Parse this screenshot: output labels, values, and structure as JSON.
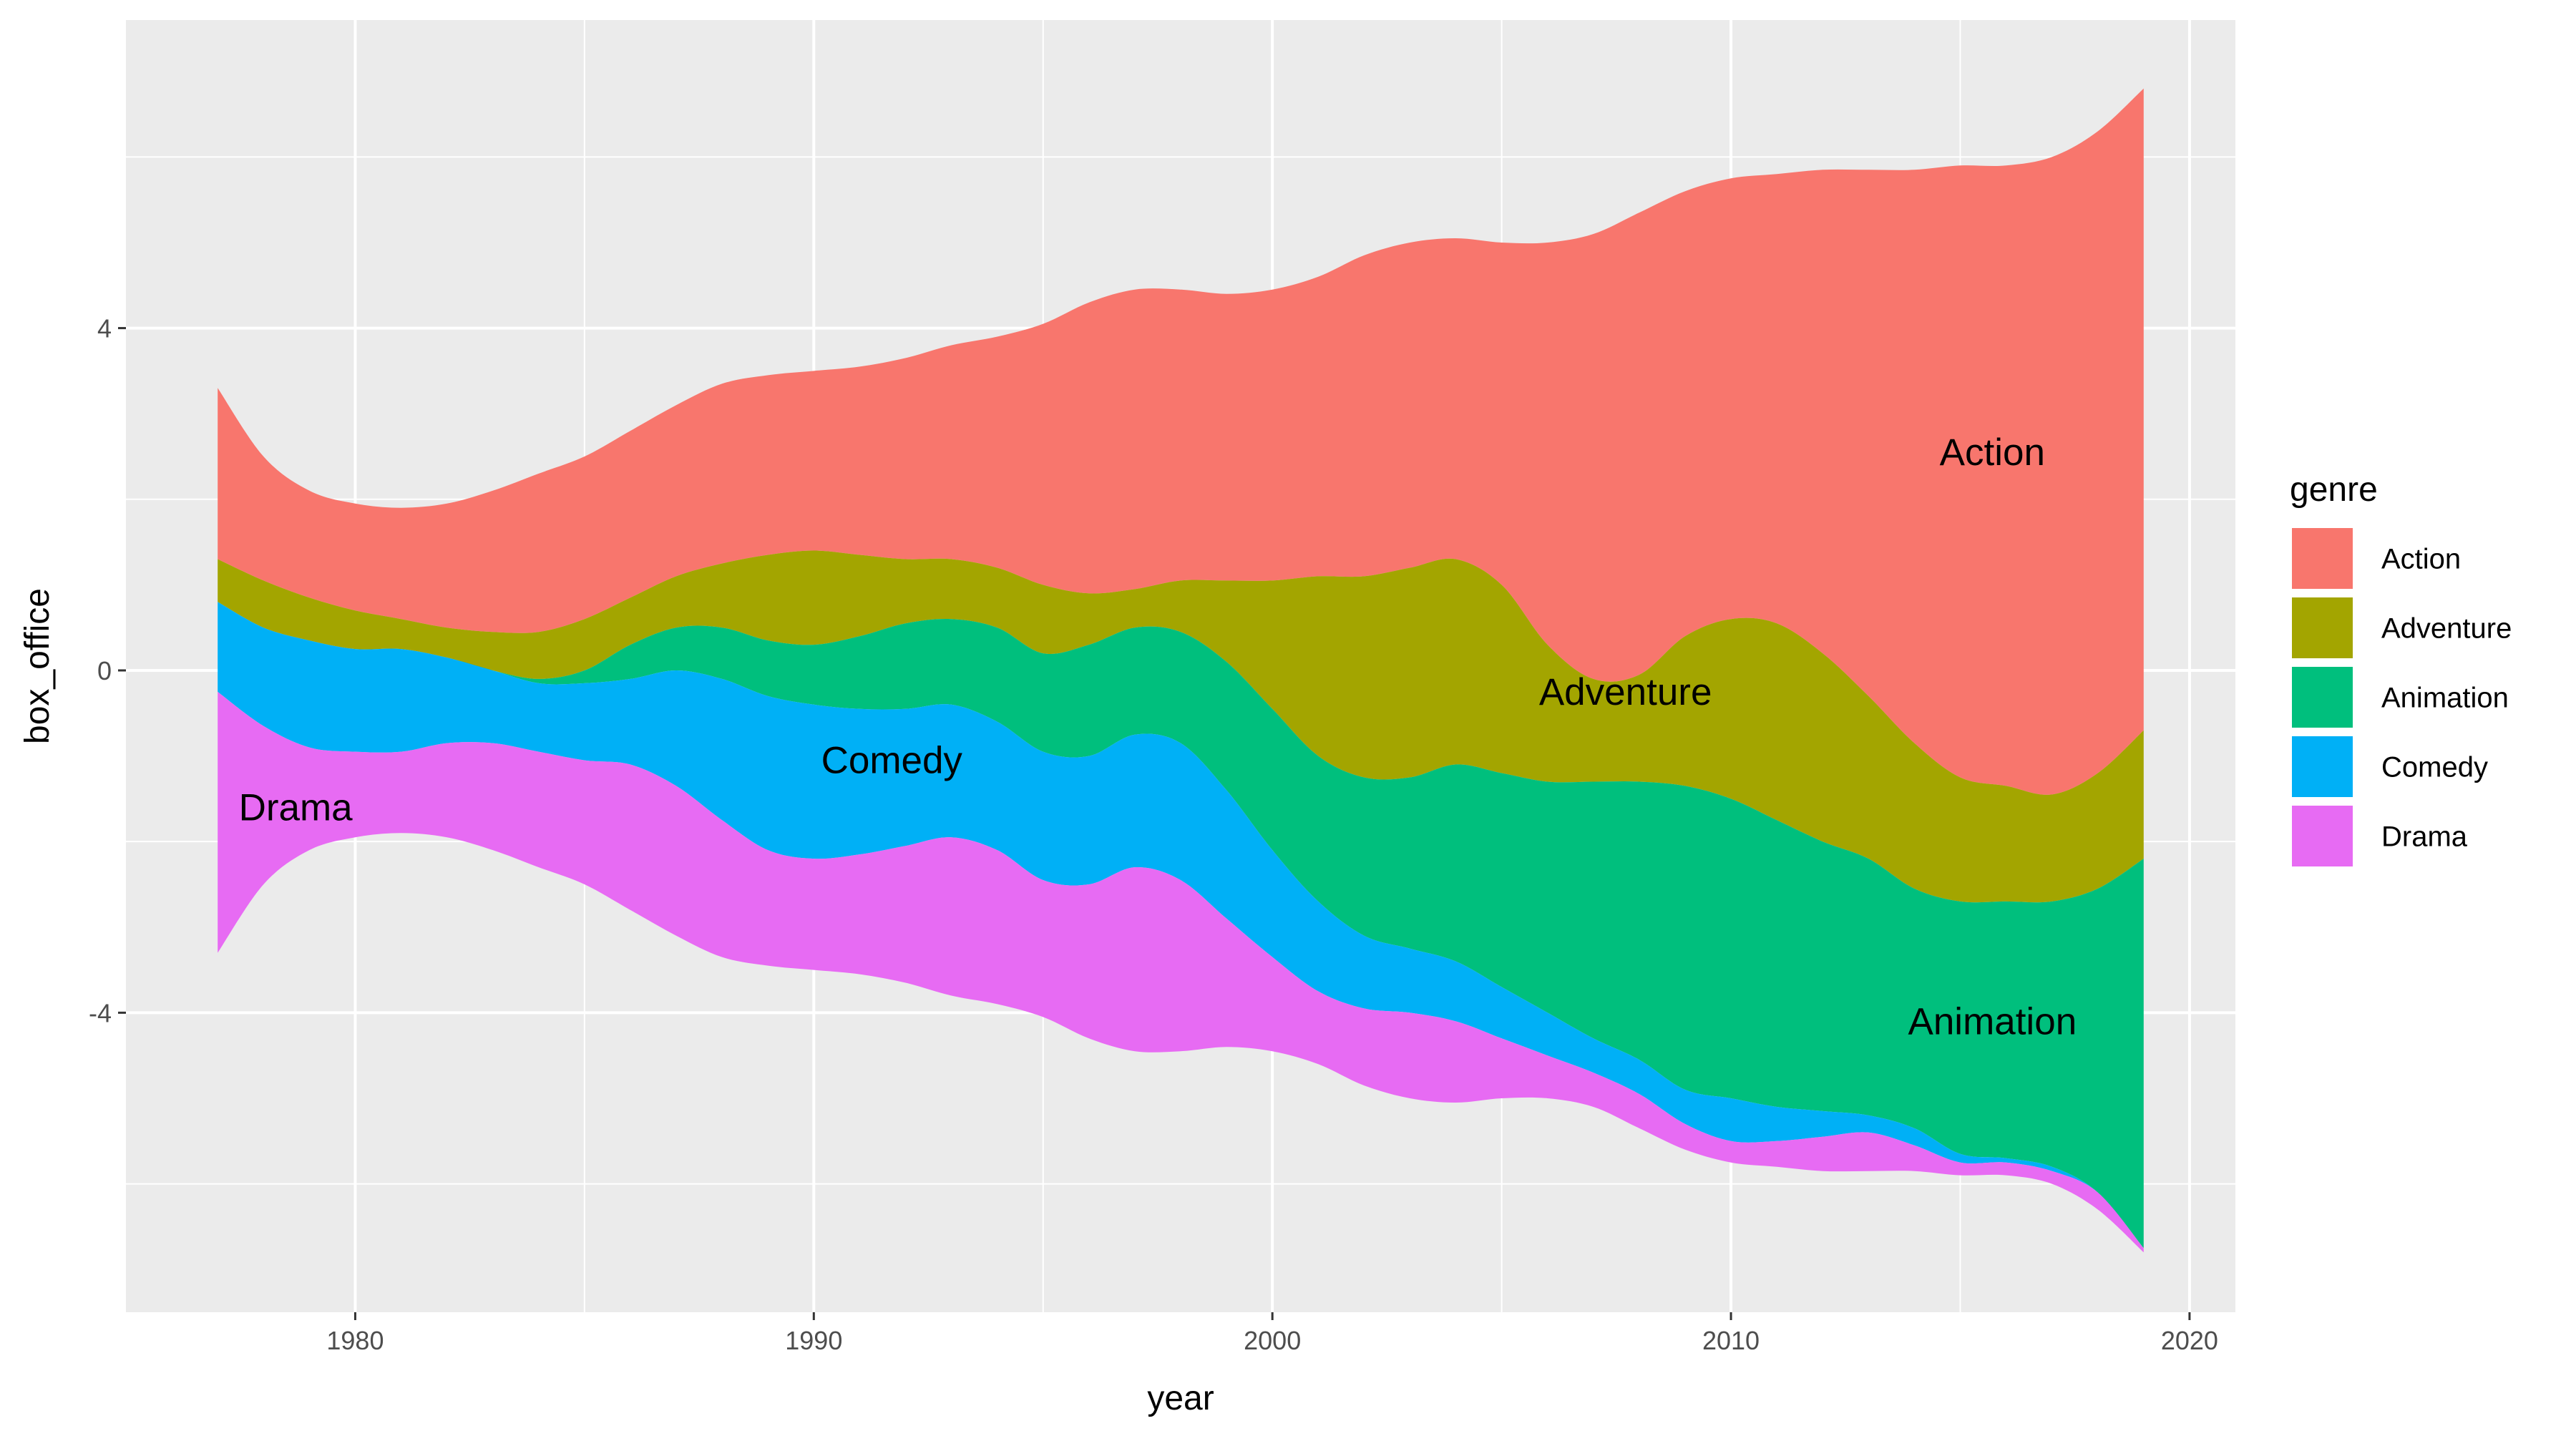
{
  "chart_data": {
    "type": "area",
    "subtype": "streamgraph",
    "title": "",
    "xlabel": "year",
    "ylabel": "box_office",
    "xlim": [
      1975,
      2021
    ],
    "ylim": [
      -7.5,
      7.6
    ],
    "x_ticks": [
      1980,
      1990,
      2000,
      2010,
      2020
    ],
    "y_ticks": [
      -4,
      0,
      4
    ],
    "grid": true,
    "legend": {
      "title": "genre",
      "position": "right"
    },
    "x": [
      1977,
      1978,
      1979,
      1980,
      1981,
      1982,
      1983,
      1984,
      1985,
      1986,
      1987,
      1988,
      1989,
      1990,
      1991,
      1992,
      1993,
      1994,
      1995,
      1996,
      1997,
      1998,
      1999,
      2000,
      2001,
      2002,
      2003,
      2004,
      2005,
      2006,
      2007,
      2008,
      2009,
      2010,
      2011,
      2012,
      2013,
      2014,
      2015,
      2016,
      2017,
      2018,
      2019
    ],
    "series": [
      {
        "name": "Action",
        "color": "#F8766D",
        "label": "Action",
        "label_x": 2015.7,
        "label_y": 2.55,
        "upper": [
          3.3,
          2.5,
          2.1,
          1.95,
          1.9,
          1.95,
          2.1,
          2.3,
          2.5,
          2.8,
          3.1,
          3.35,
          3.45,
          3.5,
          3.55,
          3.65,
          3.8,
          3.9,
          4.05,
          4.3,
          4.45,
          4.45,
          4.4,
          4.45,
          4.6,
          4.85,
          5.0,
          5.05,
          5.0,
          5.0,
          5.1,
          5.35,
          5.6,
          5.75,
          5.8,
          5.85,
          5.85,
          5.85,
          5.9,
          5.9,
          6.0,
          6.3,
          6.8
        ],
        "lower": [
          1.3,
          1.05,
          0.85,
          0.7,
          0.6,
          0.5,
          0.45,
          0.45,
          0.6,
          0.85,
          1.1,
          1.25,
          1.35,
          1.4,
          1.35,
          1.3,
          1.3,
          1.2,
          1.0,
          0.9,
          0.95,
          1.05,
          1.05,
          1.05,
          1.1,
          1.1,
          1.2,
          1.3,
          1.0,
          0.3,
          -0.1,
          -0.05,
          0.4,
          0.6,
          0.55,
          0.2,
          -0.3,
          -0.85,
          -1.25,
          -1.35,
          -1.45,
          -1.2,
          -0.7
        ]
      },
      {
        "name": "Adventure",
        "color": "#A3A500",
        "label": "Adventure",
        "label_x": 2007.7,
        "label_y": -0.25,
        "upper": [
          1.3,
          1.05,
          0.85,
          0.7,
          0.6,
          0.5,
          0.45,
          0.45,
          0.6,
          0.85,
          1.1,
          1.25,
          1.35,
          1.4,
          1.35,
          1.3,
          1.3,
          1.2,
          1.0,
          0.9,
          0.95,
          1.05,
          1.05,
          1.05,
          1.1,
          1.1,
          1.2,
          1.3,
          1.0,
          0.3,
          -0.1,
          -0.05,
          0.4,
          0.6,
          0.55,
          0.2,
          -0.3,
          -0.85,
          -1.25,
          -1.35,
          -1.45,
          -1.2,
          -0.7
        ],
        "lower": [
          0.8,
          0.5,
          0.35,
          0.25,
          0.25,
          0.15,
          0.0,
          -0.1,
          0.0,
          0.3,
          0.5,
          0.5,
          0.35,
          0.3,
          0.4,
          0.55,
          0.6,
          0.5,
          0.2,
          0.3,
          0.5,
          0.45,
          0.1,
          -0.45,
          -1.0,
          -1.25,
          -1.25,
          -1.1,
          -1.2,
          -1.3,
          -1.3,
          -1.3,
          -1.35,
          -1.5,
          -1.75,
          -2.0,
          -2.2,
          -2.55,
          -2.7,
          -2.7,
          -2.7,
          -2.55,
          -2.2
        ]
      },
      {
        "name": "Animation",
        "color": "#00BF7D",
        "label": "Animation",
        "label_x": 2015.7,
        "label_y": -4.1,
        "upper": [
          0.8,
          0.5,
          0.35,
          0.25,
          0.25,
          0.15,
          0.0,
          -0.1,
          0.0,
          0.3,
          0.5,
          0.5,
          0.35,
          0.3,
          0.4,
          0.55,
          0.6,
          0.5,
          0.2,
          0.3,
          0.5,
          0.45,
          0.1,
          -0.45,
          -1.0,
          -1.25,
          -1.25,
          -1.1,
          -1.2,
          -1.3,
          -1.3,
          -1.3,
          -1.35,
          -1.5,
          -1.75,
          -2.0,
          -2.2,
          -2.55,
          -2.7,
          -2.7,
          -2.7,
          -2.55,
          -2.2
        ],
        "lower": [
          0.8,
          0.5,
          0.35,
          0.25,
          0.25,
          0.15,
          0.0,
          -0.15,
          -0.15,
          -0.1,
          0.0,
          -0.1,
          -0.3,
          -0.4,
          -0.45,
          -0.45,
          -0.4,
          -0.6,
          -0.95,
          -1.0,
          -0.75,
          -0.85,
          -1.4,
          -2.1,
          -2.7,
          -3.1,
          -3.25,
          -3.4,
          -3.7,
          -4.0,
          -4.3,
          -4.55,
          -4.9,
          -5.0,
          -5.1,
          -5.15,
          -5.2,
          -5.35,
          -5.65,
          -5.7,
          -5.8,
          -6.1,
          -6.75
        ]
      },
      {
        "name": "Comedy",
        "color": "#00B0F6",
        "label": "Comedy",
        "label_x": 1991.7,
        "label_y": -1.05,
        "upper": [
          0.8,
          0.5,
          0.35,
          0.25,
          0.25,
          0.15,
          0.0,
          -0.15,
          -0.15,
          -0.1,
          0.0,
          -0.1,
          -0.3,
          -0.4,
          -0.45,
          -0.45,
          -0.4,
          -0.6,
          -0.95,
          -1.0,
          -0.75,
          -0.85,
          -1.4,
          -2.1,
          -2.7,
          -3.1,
          -3.25,
          -3.4,
          -3.7,
          -4.0,
          -4.3,
          -4.55,
          -4.9,
          -5.0,
          -5.1,
          -5.15,
          -5.2,
          -5.35,
          -5.65,
          -5.7,
          -5.8,
          -6.1,
          -6.75
        ],
        "lower": [
          -0.25,
          -0.65,
          -0.9,
          -0.95,
          -0.95,
          -0.85,
          -0.85,
          -0.95,
          -1.05,
          -1.1,
          -1.35,
          -1.75,
          -2.1,
          -2.2,
          -2.15,
          -2.05,
          -1.95,
          -2.1,
          -2.45,
          -2.5,
          -2.3,
          -2.45,
          -2.9,
          -3.35,
          -3.75,
          -3.95,
          -4.0,
          -4.1,
          -4.3,
          -4.5,
          -4.7,
          -4.95,
          -5.3,
          -5.5,
          -5.5,
          -5.45,
          -5.4,
          -5.55,
          -5.75,
          -5.75,
          -5.85,
          -6.1,
          -6.75
        ]
      },
      {
        "name": "Drama",
        "color": "#E76BF3",
        "label": "Drama",
        "label_x": 1978.7,
        "label_y": -1.6,
        "upper": [
          -0.25,
          -0.65,
          -0.9,
          -0.95,
          -0.95,
          -0.85,
          -0.85,
          -0.95,
          -1.05,
          -1.1,
          -1.35,
          -1.75,
          -2.1,
          -2.2,
          -2.15,
          -2.05,
          -1.95,
          -2.1,
          -2.45,
          -2.5,
          -2.3,
          -2.45,
          -2.9,
          -3.35,
          -3.75,
          -3.95,
          -4.0,
          -4.1,
          -4.3,
          -4.5,
          -4.7,
          -4.95,
          -5.3,
          -5.5,
          -5.5,
          -5.45,
          -5.4,
          -5.55,
          -5.75,
          -5.75,
          -5.85,
          -6.1,
          -6.75
        ],
        "lower": [
          -3.3,
          -2.5,
          -2.1,
          -1.95,
          -1.9,
          -1.95,
          -2.1,
          -2.3,
          -2.5,
          -2.8,
          -3.1,
          -3.35,
          -3.45,
          -3.5,
          -3.55,
          -3.65,
          -3.8,
          -3.9,
          -4.05,
          -4.3,
          -4.45,
          -4.45,
          -4.4,
          -4.45,
          -4.6,
          -4.85,
          -5.0,
          -5.05,
          -5.0,
          -5.0,
          -5.1,
          -5.35,
          -5.6,
          -5.75,
          -5.8,
          -5.85,
          -5.85,
          -5.85,
          -5.9,
          -5.9,
          -6.0,
          -6.3,
          -6.8
        ]
      }
    ]
  }
}
